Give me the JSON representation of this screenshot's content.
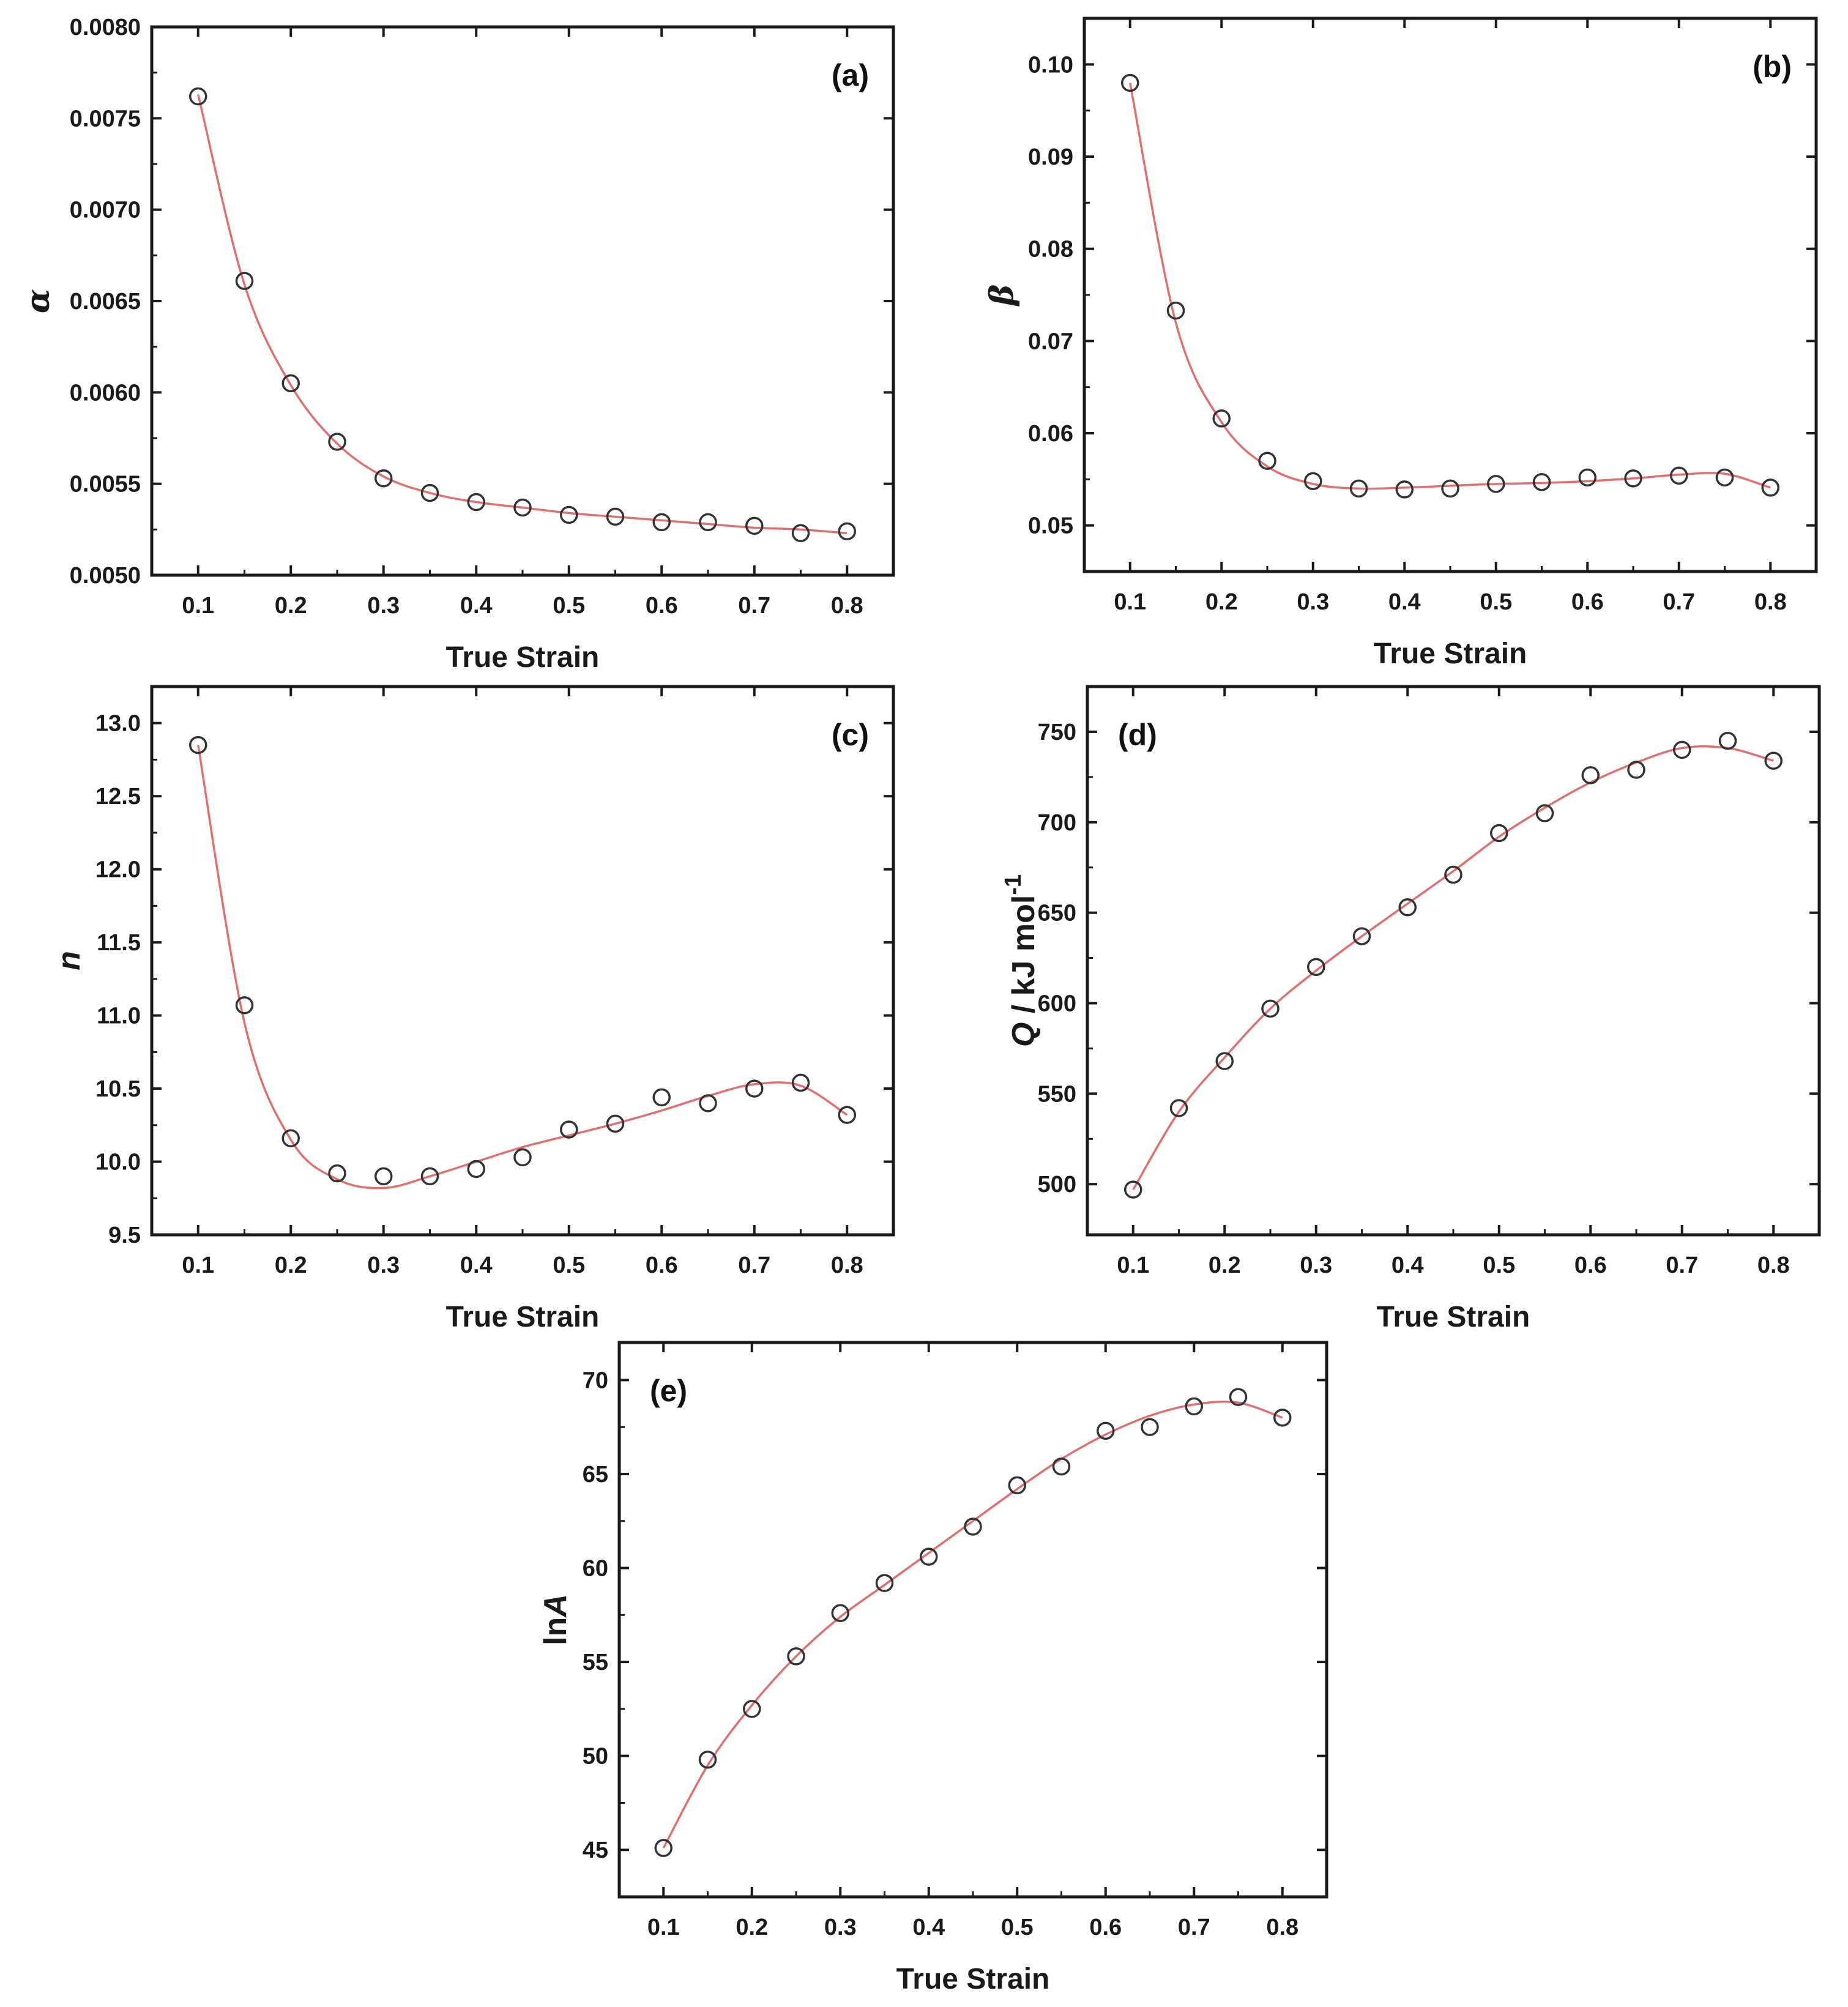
{
  "figure": {
    "panel_count": 5,
    "colors": {
      "fit_line": "#e07070",
      "marker": "#333333",
      "axes": "#1a1a1a"
    }
  },
  "chart_data": [
    {
      "id": "a",
      "type": "scatter",
      "panel_label": "(a)",
      "title": "",
      "xlabel": "True Strain",
      "ylabel": "α",
      "ylabel_style": "italic-serif",
      "x": [
        0.1,
        0.15,
        0.2,
        0.25,
        0.3,
        0.35,
        0.4,
        0.45,
        0.5,
        0.55,
        0.6,
        0.65,
        0.7,
        0.75,
        0.8
      ],
      "y": [
        0.00762,
        0.00661,
        0.00605,
        0.00573,
        0.00553,
        0.00545,
        0.0054,
        0.00537,
        0.00533,
        0.00532,
        0.00529,
        0.00529,
        0.00527,
        0.00523,
        0.00524
      ],
      "fit_y": [
        0.00763,
        0.00659,
        0.00604,
        0.00572,
        0.00554,
        0.00545,
        0.0054,
        0.00537,
        0.00534,
        0.00532,
        0.0053,
        0.00528,
        0.00526,
        0.00525,
        0.00523
      ],
      "xlim": [
        0.05,
        0.85
      ],
      "ylim": [
        0.005,
        0.008
      ],
      "xticks": [
        0.1,
        0.2,
        0.3,
        0.4,
        0.5,
        0.6,
        0.7,
        0.8
      ],
      "xtick_labels": [
        "0.1",
        "0.2",
        "0.3",
        "0.4",
        "0.5",
        "0.6",
        "0.7",
        "0.8"
      ],
      "yticks": [
        0.005,
        0.0055,
        0.006,
        0.0065,
        0.007,
        0.0075,
        0.008
      ],
      "ytick_labels": [
        "0.0050",
        "0.0055",
        "0.0060",
        "0.0065",
        "0.0070",
        "0.0075",
        "0.0080"
      ],
      "legend": "none"
    },
    {
      "id": "b",
      "type": "scatter",
      "panel_label": "(b)",
      "title": "",
      "xlabel": "True Strain",
      "ylabel": "β",
      "ylabel_style": "italic-serif",
      "x": [
        0.1,
        0.15,
        0.2,
        0.25,
        0.3,
        0.35,
        0.4,
        0.45,
        0.5,
        0.55,
        0.6,
        0.65,
        0.7,
        0.75,
        0.8
      ],
      "y": [
        0.098,
        0.0733,
        0.0616,
        0.057,
        0.0548,
        0.054,
        0.0539,
        0.054,
        0.0545,
        0.0547,
        0.0552,
        0.0551,
        0.0554,
        0.0552,
        0.0541
      ],
      "fit_y": [
        0.098,
        0.072,
        0.0612,
        0.0564,
        0.0545,
        0.054,
        0.0541,
        0.0543,
        0.0545,
        0.0546,
        0.0548,
        0.0551,
        0.0555,
        0.0556,
        0.0541
      ],
      "xlim": [
        0.05,
        0.85
      ],
      "ylim": [
        0.045,
        0.105
      ],
      "xticks": [
        0.1,
        0.2,
        0.3,
        0.4,
        0.5,
        0.6,
        0.7,
        0.8
      ],
      "xtick_labels": [
        "0.1",
        "0.2",
        "0.3",
        "0.4",
        "0.5",
        "0.6",
        "0.7",
        "0.8"
      ],
      "yticks": [
        0.05,
        0.06,
        0.07,
        0.08,
        0.09,
        0.1
      ],
      "ytick_labels": [
        "0.05",
        "0.06",
        "0.07",
        "0.08",
        "0.09",
        "0.10"
      ],
      "legend": "none"
    },
    {
      "id": "c",
      "type": "scatter",
      "panel_label": "(c)",
      "title": "",
      "xlabel": "True Strain",
      "ylabel": "n",
      "ylabel_style": "italic",
      "x": [
        0.1,
        0.15,
        0.2,
        0.25,
        0.3,
        0.35,
        0.4,
        0.45,
        0.5,
        0.55,
        0.6,
        0.65,
        0.7,
        0.75,
        0.8
      ],
      "y": [
        12.85,
        11.07,
        10.16,
        9.92,
        9.9,
        9.9,
        9.95,
        10.03,
        10.22,
        10.26,
        10.44,
        10.4,
        10.5,
        10.54,
        10.32
      ],
      "fit_y": [
        12.85,
        10.95,
        10.15,
        9.88,
        9.82,
        9.9,
        10.0,
        10.1,
        10.18,
        10.26,
        10.35,
        10.45,
        10.53,
        10.52,
        10.32
      ],
      "xlim": [
        0.05,
        0.85
      ],
      "ylim": [
        9.5,
        13.25
      ],
      "xticks": [
        0.1,
        0.2,
        0.3,
        0.4,
        0.5,
        0.6,
        0.7,
        0.8
      ],
      "xtick_labels": [
        "0.1",
        "0.2",
        "0.3",
        "0.4",
        "0.5",
        "0.6",
        "0.7",
        "0.8"
      ],
      "yticks": [
        9.5,
        10.0,
        10.5,
        11.0,
        11.5,
        12.0,
        12.5,
        13.0
      ],
      "ytick_labels": [
        "9.5",
        "10.0",
        "10.5",
        "11.0",
        "11.5",
        "12.0",
        "12.5",
        "13.0"
      ],
      "legend": "none"
    },
    {
      "id": "d",
      "type": "scatter",
      "panel_label": "(d)",
      "title": "",
      "xlabel": "True Strain",
      "ylabel_italic": "Q",
      "ylabel_rest": " / kJ mol",
      "ylabel_sup": "-1",
      "x": [
        0.1,
        0.15,
        0.2,
        0.25,
        0.3,
        0.35,
        0.4,
        0.45,
        0.5,
        0.55,
        0.6,
        0.65,
        0.7,
        0.75,
        0.8
      ],
      "y": [
        497,
        542,
        568,
        597,
        620,
        637,
        653,
        671,
        694,
        705,
        726,
        729,
        740,
        745,
        734
      ],
      "fit_y": [
        497,
        540,
        570,
        597,
        618,
        637,
        655,
        673,
        692,
        708,
        722,
        733,
        741,
        741,
        734
      ],
      "xlim": [
        0.05,
        0.85
      ],
      "ylim": [
        472,
        775
      ],
      "xticks": [
        0.1,
        0.2,
        0.3,
        0.4,
        0.5,
        0.6,
        0.7,
        0.8
      ],
      "xtick_labels": [
        "0.1",
        "0.2",
        "0.3",
        "0.4",
        "0.5",
        "0.6",
        "0.7",
        "0.8"
      ],
      "yticks": [
        500,
        550,
        600,
        650,
        700,
        750
      ],
      "ytick_labels": [
        "500",
        "550",
        "600",
        "650",
        "700",
        "750"
      ],
      "legend": "none"
    },
    {
      "id": "e",
      "type": "scatter",
      "panel_label": "(e)",
      "title": "",
      "xlabel": "True Strain",
      "ylabel_plain": "ln",
      "ylabel_italic": "A",
      "x": [
        0.1,
        0.15,
        0.2,
        0.25,
        0.3,
        0.35,
        0.4,
        0.45,
        0.5,
        0.55,
        0.6,
        0.65,
        0.7,
        0.75,
        0.8
      ],
      "y": [
        45.1,
        49.8,
        52.5,
        55.3,
        57.6,
        59.2,
        60.6,
        62.2,
        64.4,
        65.4,
        67.3,
        67.5,
        68.6,
        69.1,
        68.0
      ],
      "fit_y": [
        45.1,
        49.5,
        52.7,
        55.3,
        57.4,
        59.1,
        60.8,
        62.5,
        64.2,
        65.8,
        67.1,
        68.1,
        68.7,
        68.8,
        68.0
      ],
      "xlim": [
        0.05,
        0.85
      ],
      "ylim": [
        42.5,
        72.0
      ],
      "xticks": [
        0.1,
        0.2,
        0.3,
        0.4,
        0.5,
        0.6,
        0.7,
        0.8
      ],
      "xtick_labels": [
        "0.1",
        "0.2",
        "0.3",
        "0.4",
        "0.5",
        "0.6",
        "0.7",
        "0.8"
      ],
      "yticks": [
        45,
        50,
        55,
        60,
        65,
        70
      ],
      "ytick_labels": [
        "45",
        "50",
        "55",
        "60",
        "65",
        "70"
      ],
      "legend": "none"
    }
  ]
}
